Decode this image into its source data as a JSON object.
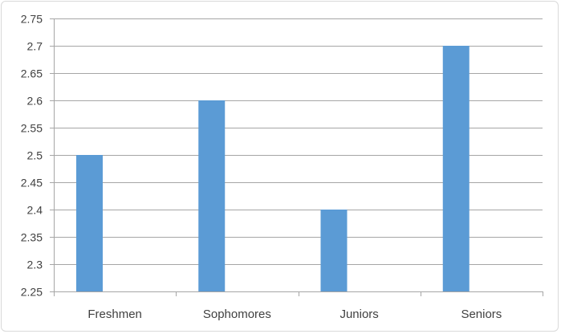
{
  "chart_data": {
    "type": "bar",
    "categories": [
      "Freshmen",
      "Sophomores",
      "Juniors",
      "Seniors"
    ],
    "values": [
      2.5,
      2.6,
      2.4,
      2.7
    ],
    "title": "",
    "xlabel": "",
    "ylabel": "",
    "ylim": [
      2.25,
      2.75
    ],
    "yticks": [
      "2.25",
      "2.3",
      "2.35",
      "2.4",
      "2.45",
      "2.5",
      "2.55",
      "2.6",
      "2.65",
      "2.7",
      "2.75"
    ],
    "grid": true,
    "legend": "none",
    "bar_color": "#5b9bd5"
  }
}
